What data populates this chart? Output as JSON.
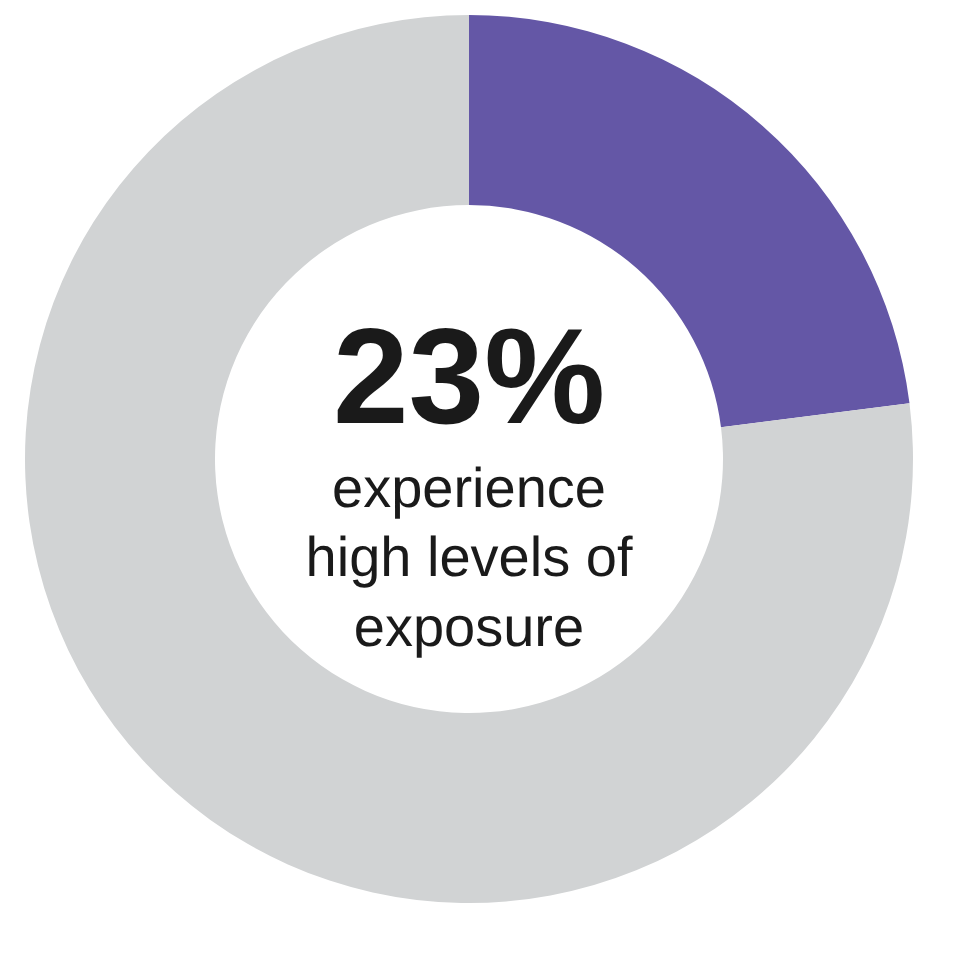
{
  "chart_data": {
    "type": "donut",
    "categories": [
      null,
      null
    ],
    "values": [
      23,
      77
    ],
    "colors": [
      "#6457a6",
      "#d1d3d4"
    ],
    "annotations": [
      "23%",
      "experience high levels of exposure"
    ]
  }
}
